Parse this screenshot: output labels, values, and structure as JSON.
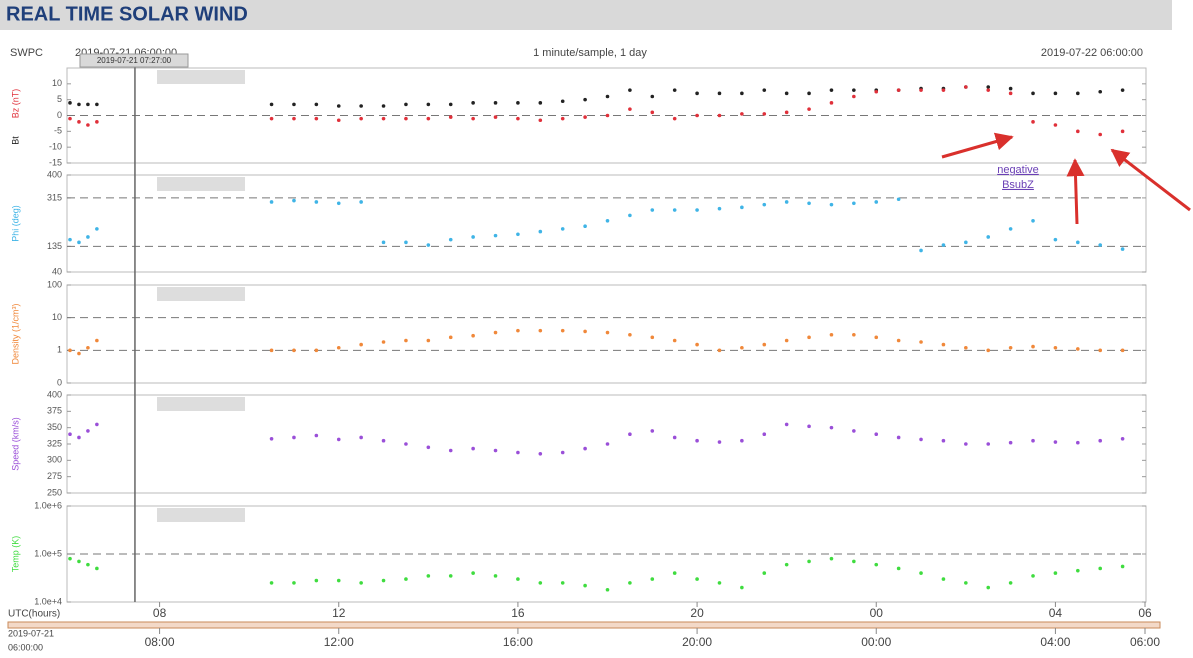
{
  "header": {
    "title": "REAL TIME SOLAR WIND"
  },
  "info": {
    "source": "SWPC",
    "start": "2019-07-21 06:00:00",
    "resolution": "1 minute/sample, 1 day",
    "end": "2019-07-22 06:00:00",
    "cursor": {
      "label": "2019-07-21 07:27:00",
      "x": 7.45
    }
  },
  "time_axis": {
    "label": "UTC(hours)",
    "start_date": "2019-07-21",
    "start_time": "06:00:00",
    "xlim": [
      6,
      30
    ],
    "xticks": [
      {
        "value": 8,
        "label": "08"
      },
      {
        "value": 12,
        "label": "12"
      },
      {
        "value": 16,
        "label": "16"
      },
      {
        "value": 20,
        "label": "20"
      },
      {
        "value": 24,
        "label": "00"
      },
      {
        "value": 28,
        "label": "04"
      },
      {
        "value": 30,
        "label": "06"
      }
    ],
    "xticks_bottom": [
      {
        "value": 8,
        "label": "08:00"
      },
      {
        "value": 12,
        "label": "12:00"
      },
      {
        "value": 16,
        "label": "16:00"
      },
      {
        "value": 20,
        "label": "20:00"
      },
      {
        "value": 24,
        "label": "00:00"
      },
      {
        "value": 28,
        "label": "04:00"
      },
      {
        "value": 30,
        "label": "06:00"
      }
    ]
  },
  "annotation": {
    "lines": [
      "negative",
      "BsubZ"
    ]
  },
  "chart_data": [
    {
      "type": "scatter",
      "xlim": [
        6,
        30
      ],
      "ylim": [
        -15,
        15
      ],
      "yticks": [
        10,
        5,
        0,
        -5,
        -10,
        -15
      ],
      "grid": [
        0
      ],
      "x": [
        6,
        6.2,
        6.4,
        6.6,
        10.5,
        11,
        11.5,
        12,
        12.5,
        13,
        13.5,
        14,
        14.5,
        15,
        15.5,
        16,
        16.5,
        17,
        17.5,
        18,
        18.5,
        19,
        19.5,
        20,
        20.5,
        21,
        21.5,
        22,
        22.5,
        23,
        23.5,
        24,
        24.5,
        25,
        25.5,
        26,
        26.5,
        27,
        27.5,
        28,
        28.5,
        29,
        29.5
      ],
      "series": [
        {
          "name": "Bt",
          "color": "#222222",
          "values": [
            4,
            3.5,
            3.5,
            3.5,
            3.5,
            3.5,
            3.5,
            3,
            3,
            3,
            3.5,
            3.5,
            3.5,
            4,
            4,
            4,
            4,
            4.5,
            5,
            6,
            8,
            6,
            8,
            7,
            7,
            7,
            8,
            7,
            7,
            8,
            8,
            8,
            8,
            8.5,
            8.5,
            9,
            9,
            8.5,
            7,
            7,
            7,
            7.5,
            8
          ]
        },
        {
          "name": "Bz (nT)",
          "color": "#e0303a",
          "values": [
            -1,
            -2,
            -3,
            -2,
            -1,
            -1,
            -1,
            -1.5,
            -1,
            -1,
            -1,
            -1,
            -0.5,
            -1,
            -0.5,
            -1,
            -1.5,
            -1,
            -0.5,
            0,
            2,
            1,
            -1,
            0,
            0,
            0.5,
            0.5,
            1,
            2,
            4,
            6,
            7.5,
            8,
            8,
            8,
            9,
            8,
            7,
            -2,
            -3,
            -5,
            -6,
            -5
          ]
        }
      ]
    },
    {
      "type": "scatter",
      "xlim": [
        6,
        30
      ],
      "ylim": [
        40,
        400
      ],
      "yticks": [
        400,
        315,
        135,
        40
      ],
      "grid": [
        315,
        135
      ],
      "x": [
        6,
        6.2,
        6.4,
        6.6,
        10.5,
        11,
        11.5,
        12,
        12.5,
        13,
        13.5,
        14,
        14.5,
        15,
        15.5,
        16,
        16.5,
        17,
        17.5,
        18,
        18.5,
        19,
        19.5,
        20,
        20.5,
        21,
        21.5,
        22,
        22.5,
        23,
        23.5,
        24,
        24.5,
        25,
        25.5,
        26,
        26.5,
        27,
        27.5,
        28,
        28.5,
        29,
        29.5
      ],
      "series": [
        {
          "name": "Phi (deg)",
          "color": "#3fb4e6",
          "values": [
            160,
            150,
            170,
            200,
            300,
            305,
            300,
            295,
            300,
            150,
            150,
            140,
            160,
            170,
            175,
            180,
            190,
            200,
            210,
            230,
            250,
            270,
            270,
            270,
            275,
            280,
            290,
            300,
            295,
            290,
            295,
            300,
            310,
            120,
            140,
            150,
            170,
            200,
            230,
            160,
            150,
            140,
            125
          ]
        }
      ]
    },
    {
      "type": "scatter",
      "log": true,
      "xlim": [
        6,
        30
      ],
      "ylim": [
        0.1,
        100
      ],
      "yticks": [
        100,
        10,
        1,
        {
          "value": 0.1,
          "label": "0"
        }
      ],
      "grid": [
        10,
        1
      ],
      "x": [
        6,
        6.2,
        6.4,
        6.6,
        10.5,
        11,
        11.5,
        12,
        12.5,
        13,
        13.5,
        14,
        14.5,
        15,
        15.5,
        16,
        16.5,
        17,
        17.5,
        18,
        18.5,
        19,
        19.5,
        20,
        20.5,
        21,
        21.5,
        22,
        22.5,
        23,
        23.5,
        24,
        24.5,
        25,
        25.5,
        26,
        26.5,
        27,
        27.5,
        28,
        28.5,
        29,
        29.5
      ],
      "series": [
        {
          "name": "Density (1/cm³)",
          "color": "#f0883a",
          "values": [
            1,
            0.8,
            1.2,
            2,
            1,
            1,
            1,
            1.2,
            1.5,
            1.8,
            2,
            2,
            2.5,
            2.8,
            3.5,
            4,
            4,
            4,
            3.8,
            3.5,
            3,
            2.5,
            2,
            1.5,
            1,
            1.2,
            1.5,
            2,
            2.5,
            3,
            3,
            2.5,
            2,
            1.8,
            1.5,
            1.2,
            1,
            1.2,
            1.3,
            1.2,
            1.1,
            1,
            1
          ]
        }
      ]
    },
    {
      "type": "scatter",
      "xlim": [
        6,
        30
      ],
      "ylim": [
        250,
        400
      ],
      "yticks": [
        400,
        375,
        350,
        325,
        300,
        275,
        250
      ],
      "grid": [],
      "x": [
        6,
        6.2,
        6.4,
        6.6,
        10.5,
        11,
        11.5,
        12,
        12.5,
        13,
        13.5,
        14,
        14.5,
        15,
        15.5,
        16,
        16.5,
        17,
        17.5,
        18,
        18.5,
        19,
        19.5,
        20,
        20.5,
        21,
        21.5,
        22,
        22.5,
        23,
        23.5,
        24,
        24.5,
        25,
        25.5,
        26,
        26.5,
        27,
        27.5,
        28,
        28.5,
        29,
        29.5
      ],
      "series": [
        {
          "name": "Speed (km/s)",
          "color": "#9a4fd8",
          "values": [
            340,
            335,
            345,
            355,
            333,
            335,
            338,
            332,
            335,
            330,
            325,
            320,
            315,
            318,
            315,
            312,
            310,
            312,
            318,
            325,
            340,
            345,
            335,
            330,
            328,
            330,
            340,
            355,
            352,
            350,
            345,
            340,
            335,
            332,
            330,
            325,
            325,
            327,
            330,
            328,
            327,
            330,
            333
          ]
        }
      ]
    },
    {
      "type": "scatter",
      "log": true,
      "xlim": [
        6,
        30
      ],
      "ylim": [
        10000,
        1000000
      ],
      "yticks": [
        {
          "value": 1000000,
          "label": "1.0e+6"
        },
        {
          "value": 100000,
          "label": "1.0e+5"
        },
        {
          "value": 10000,
          "label": "1.0e+4"
        }
      ],
      "grid": [
        100000
      ],
      "x": [
        6,
        6.2,
        6.4,
        6.6,
        10.5,
        11,
        11.5,
        12,
        12.5,
        13,
        13.5,
        14,
        14.5,
        15,
        15.5,
        16,
        16.5,
        17,
        17.5,
        18,
        18.5,
        19,
        19.5,
        20,
        20.5,
        21,
        21.5,
        22,
        22.5,
        23,
        23.5,
        24,
        24.5,
        25,
        25.5,
        26,
        26.5,
        27,
        27.5,
        28,
        28.5,
        29,
        29.5
      ],
      "series": [
        {
          "name": "Temp (K)",
          "color": "#3fdc3f",
          "values": [
            80000,
            70000,
            60000,
            50000,
            25000,
            25000,
            28000,
            28000,
            25000,
            28000,
            30000,
            35000,
            35000,
            40000,
            35000,
            30000,
            25000,
            25000,
            22000,
            18000,
            25000,
            30000,
            40000,
            30000,
            25000,
            20000,
            40000,
            60000,
            70000,
            80000,
            70000,
            60000,
            50000,
            40000,
            30000,
            25000,
            20000,
            25000,
            35000,
            40000,
            45000,
            50000,
            55000
          ]
        }
      ]
    }
  ]
}
